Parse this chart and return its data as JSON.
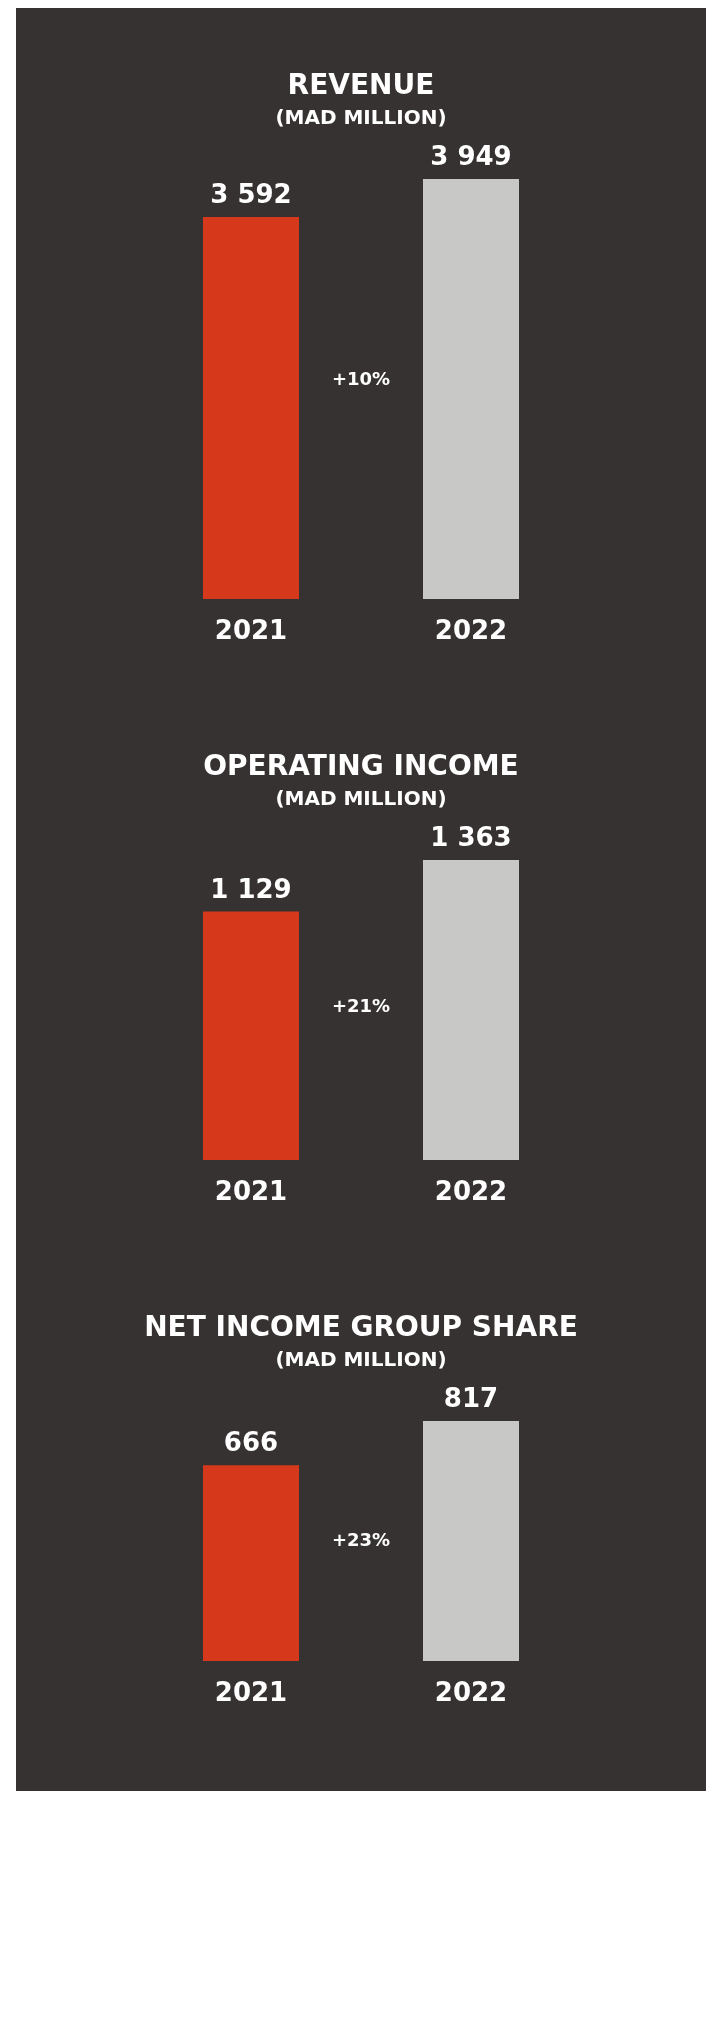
{
  "chart_data": [
    {
      "type": "bar",
      "title": "REVENUE",
      "subtitle": "(MAD MILLION)",
      "categories": [
        "2021",
        "2022"
      ],
      "values": [
        3592,
        3949
      ],
      "colors": [
        "#d5381b",
        "#c8c9c7"
      ],
      "value_labels": [
        "3 592",
        "3 949"
      ],
      "annotations": [
        "+10%"
      ]
    },
    {
      "type": "bar",
      "title": "OPERATING INCOME",
      "subtitle": "(MAD MILLION)",
      "categories": [
        "2021",
        "2022"
      ],
      "values": [
        1129,
        1363
      ],
      "colors": [
        "#d5381b",
        "#c8c9c7"
      ],
      "value_labels": [
        "1 129",
        "1 363"
      ],
      "annotations": [
        "+21%"
      ]
    },
    {
      "type": "bar",
      "title": "NET INCOME GROUP SHARE",
      "subtitle": "(MAD MILLION)",
      "categories": [
        "2021",
        "2022"
      ],
      "values": [
        666,
        817
      ],
      "colors": [
        "#d5381b",
        "#c8c9c7"
      ],
      "value_labels": [
        "666",
        "817"
      ],
      "annotations": [
        "+23%"
      ]
    }
  ]
}
